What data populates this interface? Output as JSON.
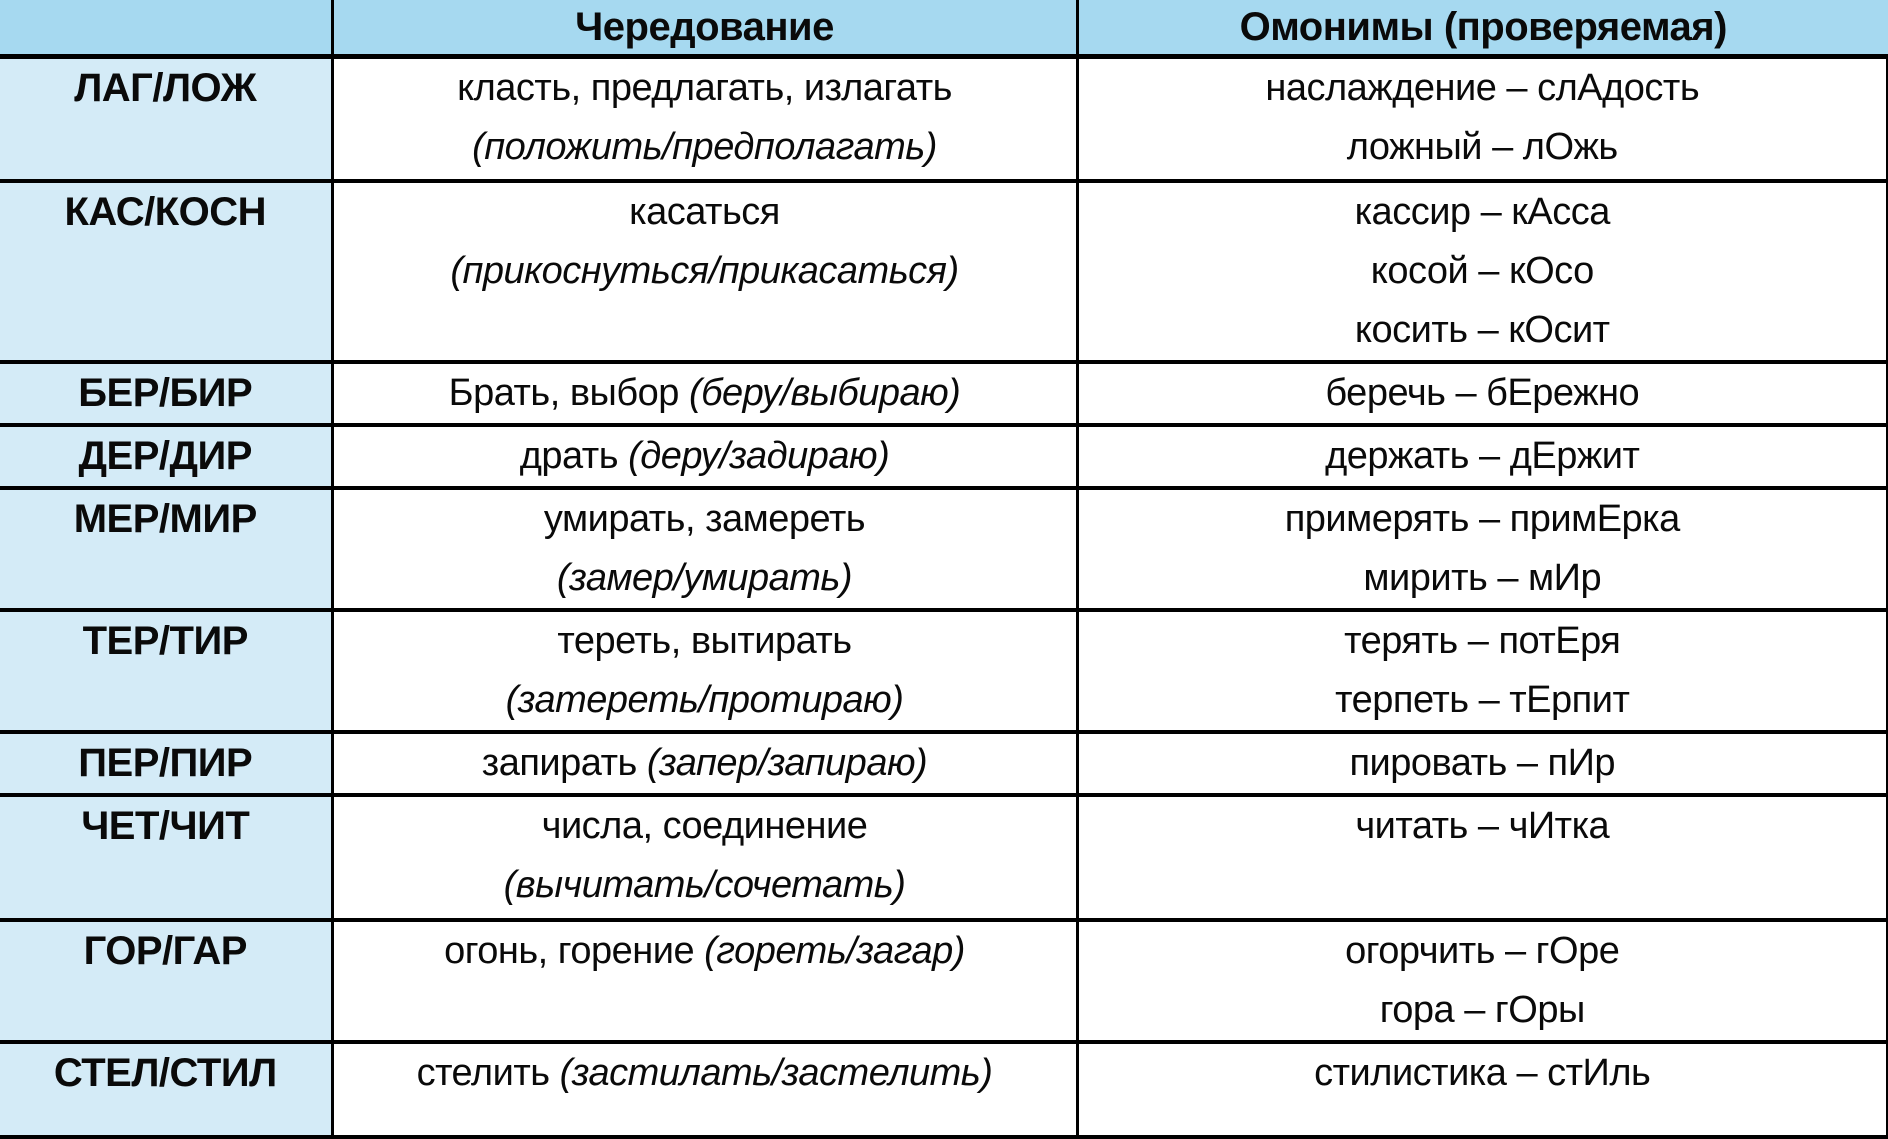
{
  "table": {
    "headers": [
      "",
      "Чередование",
      "Омонимы (проверяемая)"
    ],
    "rows": [
      {
        "root": "ЛАГ/ЛОЖ",
        "alternation": [
          [
            {
              "t": "класть, предлагать, излагать",
              "i": false
            }
          ],
          [
            {
              "t": "(положить/предполагать)",
              "i": true
            }
          ]
        ],
        "homonyms": [
          "наслаждение – слАдость",
          "ложный – лОжь"
        ]
      },
      {
        "root": "КАС/КОСН",
        "alternation": [
          [
            {
              "t": "касаться",
              "i": false
            }
          ],
          [
            {
              "t": "(прикоснуться/прикасаться)",
              "i": true
            }
          ]
        ],
        "homonyms": [
          "кассир – кАсса",
          "косой – кОсо",
          "косить – кОсит"
        ]
      },
      {
        "root": "БЕР/БИР",
        "alternation": [
          [
            {
              "t": "Брать, выбор ",
              "i": false
            },
            {
              "t": "(беру/выбираю)",
              "i": true
            }
          ]
        ],
        "homonyms": [
          "беречь – бЕрежно"
        ]
      },
      {
        "root": "ДЕР/ДИР",
        "alternation": [
          [
            {
              "t": "драть ",
              "i": false
            },
            {
              "t": "(деру/задираю)",
              "i": true
            }
          ]
        ],
        "homonyms": [
          "держать – дЕржит"
        ]
      },
      {
        "root": "МЕР/МИР",
        "alternation": [
          [
            {
              "t": "умирать, замереть",
              "i": false
            }
          ],
          [
            {
              "t": "(замер/умирать)",
              "i": true
            }
          ]
        ],
        "homonyms": [
          "примерять – примЕрка",
          "мирить – мИр"
        ]
      },
      {
        "root": "ТЕР/ТИР",
        "alternation": [
          [
            {
              "t": "тереть, вытирать",
              "i": false
            }
          ],
          [
            {
              "t": "(затереть/протираю)",
              "i": true
            }
          ]
        ],
        "homonyms": [
          "терять – потЕря",
          "терпеть – тЕрпит"
        ]
      },
      {
        "root": "ПЕР/ПИР",
        "alternation": [
          [
            {
              "t": "запирать ",
              "i": false
            },
            {
              "t": "(запер/запираю)",
              "i": true
            }
          ]
        ],
        "homonyms": [
          "пировать – пИр"
        ]
      },
      {
        "root": "ЧЕТ/ЧИТ",
        "alternation": [
          [
            {
              "t": "числа, соединение",
              "i": false
            }
          ],
          [
            {
              "t": "(вычитать/сочетать)",
              "i": true
            }
          ]
        ],
        "homonyms": [
          "читать – чИтка"
        ]
      },
      {
        "root": "ГОР/ГАР",
        "alternation": [
          [
            {
              "t": "огонь, горение ",
              "i": false
            },
            {
              "t": "(гореть/загар)",
              "i": true
            }
          ]
        ],
        "homonyms": [
          "огорчить – гОре",
          "гора – гОры"
        ]
      },
      {
        "root": "СТЕЛ/СТИЛ",
        "alternation": [
          [
            {
              "t": "стелить ",
              "i": false
            },
            {
              "t": "(застилать/застелить)",
              "i": true
            }
          ]
        ],
        "homonyms": [
          "стилистика – стИль"
        ]
      }
    ]
  },
  "colors": {
    "header_bg": "#a6d9f0",
    "root_column_bg": "#d4ebf7",
    "grid_line": "#000000",
    "cell_bg": "#ffffff",
    "text": "#0a0a0a"
  }
}
